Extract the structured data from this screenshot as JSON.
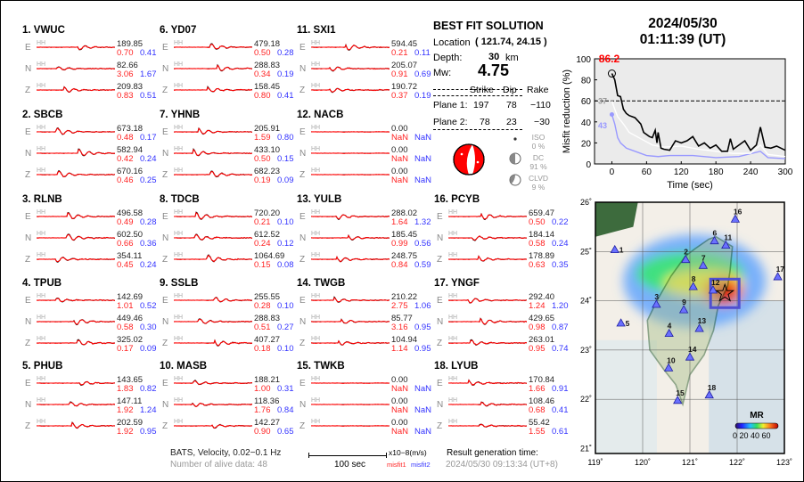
{
  "header": {
    "date": "2024/05/30",
    "time": "01:11:39  (UT)"
  },
  "stations": [
    {
      "label": "1.  VWUC",
      "comps": [
        {
          "c": "E",
          "inst": "HH",
          "amp": "189.85",
          "m1": "0.70",
          "m2": "0.41"
        },
        {
          "c": "N",
          "inst": "HH",
          "amp": "82.66",
          "m1": "3.06",
          "m2": "1.67"
        },
        {
          "c": "Z",
          "inst": "HH",
          "amp": "209.83",
          "m1": "0.83",
          "m2": "0.51"
        }
      ]
    },
    {
      "label": "2.  SBCB",
      "comps": [
        {
          "c": "E",
          "inst": "HH",
          "amp": "673.18",
          "m1": "0.48",
          "m2": "0.17"
        },
        {
          "c": "N",
          "inst": "HH",
          "amp": "582.94",
          "m1": "0.42",
          "m2": "0.24"
        },
        {
          "c": "Z",
          "inst": "HH",
          "amp": "670.16",
          "m1": "0.46",
          "m2": "0.25"
        }
      ]
    },
    {
      "label": "3.  RLNB",
      "comps": [
        {
          "c": "E",
          "inst": "HH",
          "amp": "496.58",
          "m1": "0.49",
          "m2": "0.28"
        },
        {
          "c": "N",
          "inst": "HH",
          "amp": "602.50",
          "m1": "0.66",
          "m2": "0.36"
        },
        {
          "c": "Z",
          "inst": "HH",
          "amp": "354.11",
          "m1": "0.45",
          "m2": "0.24"
        }
      ]
    },
    {
      "label": "4.  TPUB",
      "comps": [
        {
          "c": "E",
          "inst": "HH",
          "amp": "142.69",
          "m1": "1.01",
          "m2": "0.52"
        },
        {
          "c": "N",
          "inst": "HH",
          "amp": "449.46",
          "m1": "0.58",
          "m2": "0.30"
        },
        {
          "c": "Z",
          "inst": "HH",
          "amp": "325.02",
          "m1": "0.17",
          "m2": "0.09"
        }
      ]
    },
    {
      "label": "5.  PHUB",
      "comps": [
        {
          "c": "E",
          "inst": "HH",
          "amp": "143.65",
          "m1": "1.83",
          "m2": "0.82"
        },
        {
          "c": "N",
          "inst": "HH",
          "amp": "147.11",
          "m1": "1.92",
          "m2": "1.24"
        },
        {
          "c": "Z",
          "inst": "HH",
          "amp": "202.59",
          "m1": "1.92",
          "m2": "0.95"
        }
      ]
    },
    {
      "label": "6.  YD07",
      "comps": [
        {
          "c": "E",
          "inst": "HH",
          "amp": "479.18",
          "m1": "0.50",
          "m2": "0.28"
        },
        {
          "c": "N",
          "inst": "HH",
          "amp": "288.83",
          "m1": "0.34",
          "m2": "0.19"
        },
        {
          "c": "Z",
          "inst": "HH",
          "amp": "158.45",
          "m1": "0.80",
          "m2": "0.41"
        }
      ]
    },
    {
      "label": "7.  YHNB",
      "comps": [
        {
          "c": "E",
          "inst": "HH",
          "amp": "205.91",
          "m1": "1.59",
          "m2": "0.80"
        },
        {
          "c": "N",
          "inst": "HH",
          "amp": "433.10",
          "m1": "0.50",
          "m2": "0.15"
        },
        {
          "c": "Z",
          "inst": "HH",
          "amp": "682.23",
          "m1": "0.19",
          "m2": "0.09"
        }
      ]
    },
    {
      "label": "8.  TDCB",
      "comps": [
        {
          "c": "E",
          "inst": "HH",
          "amp": "720.20",
          "m1": "0.21",
          "m2": "0.10"
        },
        {
          "c": "N",
          "inst": "HH",
          "amp": "612.52",
          "m1": "0.24",
          "m2": "0.12"
        },
        {
          "c": "Z",
          "inst": "HH",
          "amp": "1064.69",
          "m1": "0.15",
          "m2": "0.08"
        }
      ]
    },
    {
      "label": "9.  SSLB",
      "comps": [
        {
          "c": "E",
          "inst": "HH",
          "amp": "255.55",
          "m1": "0.28",
          "m2": "0.10"
        },
        {
          "c": "N",
          "inst": "HH",
          "amp": "288.83",
          "m1": "0.51",
          "m2": "0.27"
        },
        {
          "c": "Z",
          "inst": "HH",
          "amp": "407.27",
          "m1": "0.18",
          "m2": "0.10"
        }
      ]
    },
    {
      "label": "10. MASB",
      "comps": [
        {
          "c": "E",
          "inst": "HH",
          "amp": "188.21",
          "m1": "1.00",
          "m2": "0.31"
        },
        {
          "c": "N",
          "inst": "HH",
          "amp": "118.36",
          "m1": "1.76",
          "m2": "0.84"
        },
        {
          "c": "Z",
          "inst": "HH",
          "amp": "142.27",
          "m1": "0.90",
          "m2": "0.65"
        }
      ]
    },
    {
      "label": "11. SXI1",
      "comps": [
        {
          "c": "E",
          "inst": "HH",
          "amp": "594.45",
          "m1": "0.21",
          "m2": "0.11"
        },
        {
          "c": "N",
          "inst": "HH",
          "amp": "205.07",
          "m1": "0.91",
          "m2": "0.69"
        },
        {
          "c": "Z",
          "inst": "HH",
          "amp": "190.72",
          "m1": "0.37",
          "m2": "0.19"
        }
      ]
    },
    {
      "label": "12. NACB",
      "comps": [
        {
          "c": "E",
          "inst": "HH",
          "amp": "0.00",
          "m1": "NaN",
          "m2": "NaN"
        },
        {
          "c": "N",
          "inst": "HH",
          "amp": "0.00",
          "m1": "NaN",
          "m2": "NaN"
        },
        {
          "c": "Z",
          "inst": "HH",
          "amp": "0.00",
          "m1": "NaN",
          "m2": "NaN"
        }
      ]
    },
    {
      "label": "13. YULB",
      "comps": [
        {
          "c": "E",
          "inst": "HH",
          "amp": "288.02",
          "m1": "1.64",
          "m2": "1.32"
        },
        {
          "c": "N",
          "inst": "HH",
          "amp": "185.45",
          "m1": "0.99",
          "m2": "0.56"
        },
        {
          "c": "Z",
          "inst": "HH",
          "amp": "248.75",
          "m1": "0.84",
          "m2": "0.59"
        }
      ]
    },
    {
      "label": "14. TWGB",
      "comps": [
        {
          "c": "E",
          "inst": "HH",
          "amp": "210.22",
          "m1": "2.75",
          "m2": "1.06"
        },
        {
          "c": "N",
          "inst": "HH",
          "amp": "85.77",
          "m1": "3.16",
          "m2": "0.95"
        },
        {
          "c": "Z",
          "inst": "HH",
          "amp": "104.94",
          "m1": "1.14",
          "m2": "0.95"
        }
      ]
    },
    {
      "label": "15. TWKB",
      "comps": [
        {
          "c": "E",
          "inst": "HH",
          "amp": "0.00",
          "m1": "NaN",
          "m2": "NaN"
        },
        {
          "c": "N",
          "inst": "HH",
          "amp": "0.00",
          "m1": "NaN",
          "m2": "NaN"
        },
        {
          "c": "Z",
          "inst": "HH",
          "amp": "0.00",
          "m1": "NaN",
          "m2": "NaN"
        }
      ]
    },
    {
      "label": "16. PCYB",
      "comps": [
        {
          "c": "E",
          "inst": "HH",
          "amp": "659.47",
          "m1": "0.50",
          "m2": "0.22"
        },
        {
          "c": "N",
          "inst": "HH",
          "amp": "184.14",
          "m1": "0.58",
          "m2": "0.24"
        },
        {
          "c": "Z",
          "inst": "HH",
          "amp": "178.89",
          "m1": "0.63",
          "m2": "0.35"
        }
      ]
    },
    {
      "label": "17. YNGF",
      "comps": [
        {
          "c": "E",
          "inst": "HH",
          "amp": "292.40",
          "m1": "1.24",
          "m2": "1.20"
        },
        {
          "c": "N",
          "inst": "HH",
          "amp": "429.65",
          "m1": "0.98",
          "m2": "0.87"
        },
        {
          "c": "Z",
          "inst": "HH",
          "amp": "263.01",
          "m1": "0.95",
          "m2": "0.74"
        }
      ]
    },
    {
      "label": "18. LYUB",
      "comps": [
        {
          "c": "E",
          "inst": "HH",
          "amp": "170.84",
          "m1": "1.66",
          "m2": "0.91"
        },
        {
          "c": "N",
          "inst": "HH",
          "amp": "108.46",
          "m1": "0.68",
          "m2": "0.41"
        },
        {
          "c": "Z",
          "inst": "HH",
          "amp": "55.42",
          "m1": "1.55",
          "m2": "0.61"
        }
      ]
    }
  ],
  "solution": {
    "title": "BEST FIT SOLUTION",
    "location_label": "Location",
    "location_value": "( 121.74,  24.15 )",
    "depth_label": "Depth:",
    "depth_value": "30",
    "depth_unit": "km",
    "mw_label": "Mw:",
    "mw_value": "4.75",
    "table_headers": [
      "Strike",
      "Dip",
      "Rake"
    ],
    "planes": [
      {
        "label": "Plane 1:",
        "strike": "197",
        "dip": "78",
        "rake": "−110"
      },
      {
        "label": "Plane 2:",
        "strike": "78",
        "dip": "23",
        "rake": "−30"
      }
    ],
    "components": [
      {
        "name": "ISO",
        "pct": "0 %"
      },
      {
        "name": "DC",
        "pct": "91 %"
      },
      {
        "name": "CLVD",
        "pct": "9 %"
      }
    ]
  },
  "footer": {
    "filter": "BATS, Velocity, 0.02−0.1 Hz",
    "alive": "Number of alive data: 48",
    "scale": "100 sec",
    "units": "x10−8(m/s)",
    "misfit1": "misfit1",
    "misfit2": "misfit2",
    "gen_label": "Result generation time:",
    "gen_time": "2024/05/30 09:13:34 (UT+8)"
  },
  "colors": {
    "observed": "#000000",
    "synthetic": "#ff0000",
    "misfit1": "#ff2222",
    "misfit2": "#3333ff",
    "beachball": "#ff0000"
  },
  "chart_data": {
    "type": "line",
    "xlabel": "Time (sec)",
    "ylabel": "Misfit reduction (%)",
    "xlim": [
      -30,
      300
    ],
    "ylim": [
      0,
      100
    ],
    "xticks": [
      0,
      60,
      120,
      180,
      240,
      300
    ],
    "yticks": [
      0,
      20,
      40,
      60,
      80,
      100
    ],
    "grid": false,
    "threshold": 60,
    "annotations": {
      "best": "86.2",
      "gray": "37",
      "blue": "43"
    },
    "series": [
      {
        "color": "#000000",
        "x": [
          0,
          5,
          10,
          15,
          20,
          25,
          30,
          40,
          50,
          55,
          65,
          70,
          75,
          78,
          80,
          85,
          90,
          100,
          110,
          120,
          130,
          140,
          150,
          160,
          170,
          180,
          190,
          200,
          205,
          210,
          220,
          230,
          240,
          250,
          257,
          265,
          275,
          285,
          300
        ],
        "y": [
          86,
          80,
          65,
          64,
          52,
          48,
          46,
          44,
          38,
          30,
          26,
          25,
          32,
          20,
          30,
          15,
          14,
          13,
          22,
          20,
          22,
          26,
          17,
          20,
          15,
          18,
          12,
          12,
          24,
          14,
          18,
          22,
          13,
          18,
          35,
          16,
          15,
          17,
          13
        ]
      },
      {
        "color": "#ffffff",
        "x": [
          0,
          5,
          10,
          20,
          30,
          50,
          70,
          90,
          120,
          150,
          180,
          210,
          240,
          257,
          270,
          300
        ],
        "y": [
          60,
          52,
          45,
          38,
          30,
          24,
          18,
          16,
          17,
          14,
          12,
          10,
          10,
          18,
          9,
          7
        ]
      },
      {
        "color": "#9999ff",
        "x": [
          0,
          5,
          10,
          15,
          25,
          40,
          60,
          80,
          100,
          140,
          180,
          220,
          257,
          270,
          300
        ],
        "y": [
          47,
          38,
          25,
          20,
          15,
          12,
          8,
          7,
          8,
          8,
          6,
          7,
          12,
          6,
          5
        ]
      }
    ]
  },
  "map": {
    "lon_ticks": [
      "119˚",
      "120˚",
      "121˚",
      "122˚",
      "123˚"
    ],
    "lat_ticks": [
      "21˚",
      "22˚",
      "23˚",
      "24˚",
      "25˚",
      "26˚"
    ],
    "colorbar_label": "MR",
    "colorbar_ticks": "0 20 40 60",
    "epicenter": {
      "lon": 121.74,
      "lat": 24.15
    },
    "stations": [
      {
        "n": "1",
        "lon": 119.41,
        "lat": 25.03
      },
      {
        "n": "2",
        "lon": 120.91,
        "lat": 24.83
      },
      {
        "n": "3",
        "lon": 120.29,
        "lat": 23.92
      },
      {
        "n": "4",
        "lon": 120.56,
        "lat": 23.33
      },
      {
        "n": "5",
        "lon": 119.54,
        "lat": 23.54
      },
      {
        "n": "6",
        "lon": 121.52,
        "lat": 25.21
      },
      {
        "n": "7",
        "lon": 121.28,
        "lat": 24.71
      },
      {
        "n": "8",
        "lon": 121.07,
        "lat": 24.28
      },
      {
        "n": "9",
        "lon": 120.87,
        "lat": 23.81
      },
      {
        "n": "10",
        "lon": 120.55,
        "lat": 22.63
      },
      {
        "n": "11",
        "lon": 121.76,
        "lat": 25.12
      },
      {
        "n": "12",
        "lon": 121.49,
        "lat": 24.21
      },
      {
        "n": "13",
        "lon": 121.2,
        "lat": 23.43
      },
      {
        "n": "14",
        "lon": 121.0,
        "lat": 22.85
      },
      {
        "n": "15",
        "lon": 120.74,
        "lat": 21.97
      },
      {
        "n": "16",
        "lon": 121.96,
        "lat": 25.65
      },
      {
        "n": "17",
        "lon": 122.86,
        "lat": 24.48
      },
      {
        "n": "18",
        "lon": 121.41,
        "lat": 22.08
      }
    ]
  }
}
